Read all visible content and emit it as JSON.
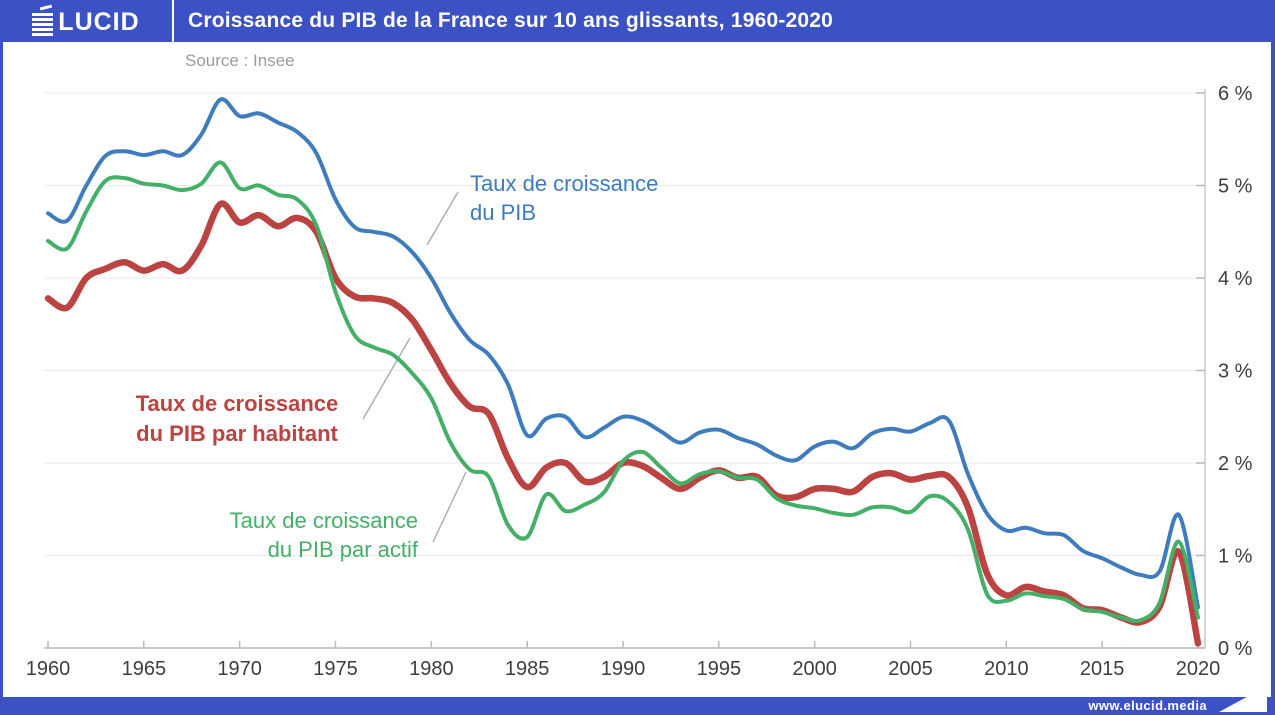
{
  "header": {
    "logo_text": "ÉLUCID",
    "logo_rest": "LUCID",
    "title": "Croissance du PIB de la France sur 10 ans glissants, 1960-2020"
  },
  "source": "Source : Insee",
  "footer": {
    "url": "www.elucid.media"
  },
  "colors": {
    "brand_blue": "#3C52C4",
    "line_pib": "#3E7CBE",
    "line_pib_habitant": "#BB4341",
    "line_pib_actif": "#44AF67",
    "grid": "#EBEBEB",
    "axis": "#B9B9B9",
    "tick_text": "#3E3E3E",
    "source_text": "#9C9C9C",
    "leader_line": "#ABABAB"
  },
  "annotations": [
    {
      "id": "pib",
      "line1": "Taux de croissance",
      "line2": "du PIB",
      "color": "#3E7CBE",
      "bold": false
    },
    {
      "id": "hab",
      "line1": "Taux de croissance",
      "line2": "du PIB par habitant",
      "color": "#BB4341",
      "bold": true
    },
    {
      "id": "actif",
      "line1": "Taux de croissance",
      "line2": "du PIB par actif",
      "color": "#44AF67",
      "bold": false
    }
  ],
  "chart_data": {
    "type": "line",
    "title": "Croissance du PIB de la France sur 10 ans glissants, 1960-2020",
    "xlabel": "",
    "ylabel": "",
    "x_start": 1960,
    "x_end": 2020,
    "x_ticks": [
      1960,
      1965,
      1970,
      1975,
      1980,
      1985,
      1990,
      1995,
      2000,
      2005,
      2010,
      2015,
      2020
    ],
    "y_ticks": [
      "0 %",
      "1 %",
      "2 %",
      "3 %",
      "4 %",
      "5 %",
      "6 %"
    ],
    "ylim": [
      0,
      6
    ],
    "grid": true,
    "legend_position": "inline-annotations",
    "series": [
      {
        "name": "Taux de croissance du PIB",
        "color": "#3E7CBE",
        "values": [
          4.7,
          4.62,
          5.0,
          5.32,
          5.37,
          5.33,
          5.37,
          5.33,
          5.55,
          5.93,
          5.75,
          5.78,
          5.68,
          5.58,
          5.35,
          4.85,
          4.55,
          4.5,
          4.45,
          4.28,
          4.0,
          3.62,
          3.33,
          3.17,
          2.85,
          2.3,
          2.48,
          2.5,
          2.28,
          2.38,
          2.5,
          2.46,
          2.34,
          2.22,
          2.33,
          2.36,
          2.27,
          2.2,
          2.08,
          2.03,
          2.18,
          2.23,
          2.16,
          2.32,
          2.37,
          2.34,
          2.43,
          2.46,
          1.88,
          1.45,
          1.27,
          1.3,
          1.24,
          1.22,
          1.05,
          0.97,
          0.87,
          0.79,
          0.83,
          1.44,
          0.44
        ]
      },
      {
        "name": "Taux de croissance du PIB par habitant",
        "color": "#BB4341",
        "values": [
          3.78,
          3.68,
          4.0,
          4.1,
          4.17,
          4.08,
          4.15,
          4.08,
          4.35,
          4.8,
          4.6,
          4.68,
          4.56,
          4.65,
          4.5,
          4.0,
          3.8,
          3.78,
          3.73,
          3.55,
          3.22,
          2.86,
          2.61,
          2.53,
          2.05,
          1.74,
          1.95,
          2.0,
          1.8,
          1.85,
          2.0,
          1.97,
          1.84,
          1.72,
          1.84,
          1.92,
          1.84,
          1.85,
          1.65,
          1.63,
          1.72,
          1.72,
          1.69,
          1.85,
          1.89,
          1.82,
          1.86,
          1.85,
          1.52,
          0.8,
          0.57,
          0.66,
          0.61,
          0.57,
          0.43,
          0.41,
          0.33,
          0.28,
          0.45,
          1.04,
          0.05
        ]
      },
      {
        "name": "Taux de croissance du PIB par actif",
        "color": "#44AF67",
        "values": [
          4.4,
          4.32,
          4.72,
          5.05,
          5.08,
          5.02,
          5.0,
          4.95,
          5.02,
          5.25,
          4.97,
          5.0,
          4.9,
          4.85,
          4.57,
          3.85,
          3.38,
          3.25,
          3.17,
          2.97,
          2.7,
          2.22,
          1.93,
          1.85,
          1.33,
          1.2,
          1.66,
          1.48,
          1.55,
          1.68,
          2.02,
          2.12,
          1.95,
          1.78,
          1.88,
          1.91,
          1.84,
          1.82,
          1.62,
          1.54,
          1.51,
          1.46,
          1.44,
          1.52,
          1.52,
          1.47,
          1.64,
          1.58,
          1.28,
          0.58,
          0.51,
          0.59,
          0.56,
          0.53,
          0.42,
          0.39,
          0.33,
          0.3,
          0.49,
          1.15,
          0.33
        ]
      }
    ]
  }
}
